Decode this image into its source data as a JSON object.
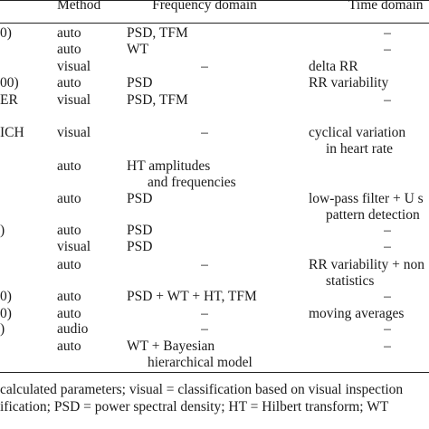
{
  "headers": {
    "method": "Method",
    "frequency": "Frequency domain",
    "time": "Time domain"
  },
  "rows": [
    {
      "left": "0)",
      "method": "auto",
      "freq": "PSD, TFM",
      "time": "–"
    },
    {
      "left": "",
      "method": "auto",
      "freq": "WT",
      "time": "–"
    },
    {
      "left": "",
      "method": "visual",
      "freq": "–",
      "time": "delta RR"
    },
    {
      "left": "00)",
      "method": "auto",
      "freq": "PSD",
      "time": "RR variability"
    },
    {
      "left": "ER",
      "method": "visual",
      "freq": "PSD, TFM",
      "time": "–"
    },
    {
      "left": "ICH",
      "method": "visual",
      "freq": "–",
      "time": "cyclical variation",
      "time2": "in heart rate"
    },
    {
      "left": "",
      "method": "auto",
      "freq": "HT amplitudes",
      "freq2": "and frequencies",
      "time": ""
    },
    {
      "left": "",
      "method": "auto",
      "freq": "PSD",
      "time": "low-pass filter + U s",
      "time2": "pattern detection"
    },
    {
      "left": ")",
      "method": "auto",
      "freq": "PSD",
      "time": "–"
    },
    {
      "left": "",
      "method": "visual",
      "freq": "PSD",
      "time": "–"
    },
    {
      "left": "",
      "method": "auto",
      "freq": "–",
      "time": "RR variability + non",
      "time2": "statistics"
    },
    {
      "left": "0)",
      "method": "auto",
      "freq": "PSD + WT + HT, TFM",
      "time": "–"
    },
    {
      "left": "0)",
      "method": "auto",
      "freq": "–",
      "time": "moving averages"
    },
    {
      "left": ")",
      "method": "audio",
      "freq": "–",
      "time": "–"
    },
    {
      "left": "",
      "method": "auto",
      "freq": "WT + Bayesian",
      "freq2": "hierarchical model",
      "time": "–"
    }
  ],
  "footnote": {
    "line1": "calculated parameters; visual = classification based on visual inspection",
    "line2": "ification; PSD = power spectral density; HT = Hilbert transform; WT"
  }
}
